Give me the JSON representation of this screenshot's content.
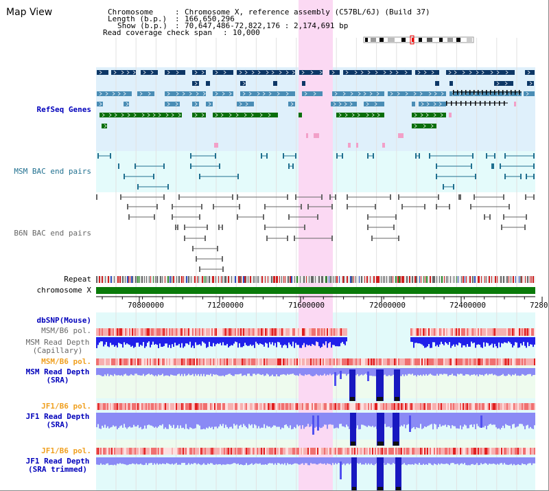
{
  "title": "Map View",
  "header": {
    "chromosome_key": "Chromosome",
    "chromosome_val": "Chromosome X, reference assembly (C57BL/6J) (Build 37)",
    "length_key": "Length (b.p.)",
    "length_val": "166,650,296",
    "show_key": "Show (b.p.)",
    "show_val": "70,647,486-72,822,176 : 2,174,691 bp",
    "coverage_key": "Read coverage check span",
    "coverage_val": "10,000"
  },
  "axis": {
    "ticks": [
      "70800000",
      "71200000",
      "71600000",
      "72000000",
      "72400000",
      "7280"
    ]
  },
  "tracks": {
    "refseq": "RefSeq Genes",
    "msm_bac": "MSM BAC end pairs",
    "b6n_bac": "B6N BAC end pairs",
    "repeat": "Repeat",
    "chromosome": "chromosome X",
    "dbsnp": "dbSNP(Mouse)",
    "msm_b6_pol_1": "MSM/B6 pol.",
    "msm_depth_cap_1": "MSM Read Depth",
    "msm_depth_cap_2": "(Capillary)",
    "msm_b6_pol_2": "MSM/B6 pol.",
    "msm_depth_sra_1": "MSM Read Depth",
    "msm_depth_sra_2": "(SRA)",
    "jf1_b6_pol_1": "JF1/B6 pol.",
    "jf1_depth_sra_1": "JF1 Read Depth",
    "jf1_depth_sra_2": "(SRA)",
    "jf1_b6_pol_2": "JF1/B6 pol.",
    "jf1_depth_trim_1": "JF1 Read Depth",
    "jf1_depth_trim_2": "(SRA trimmed)"
  },
  "colors": {
    "refseq_bg": "#dff0fb",
    "msm_bac_bg": "#e4fbfb",
    "highlight": "#fbd9f3",
    "gene_dark": "#0d3766",
    "gene_mid": "#4a8db5",
    "gene_green": "#0a6e0a",
    "gene_pink": "#f2a0c8",
    "bac_teal": "#1f6f8f",
    "chrom_green": "#0a7a0a",
    "depth_blue": "#3b3bf0",
    "depth_light": "#8a8af5",
    "pol_red": "#f05050"
  }
}
